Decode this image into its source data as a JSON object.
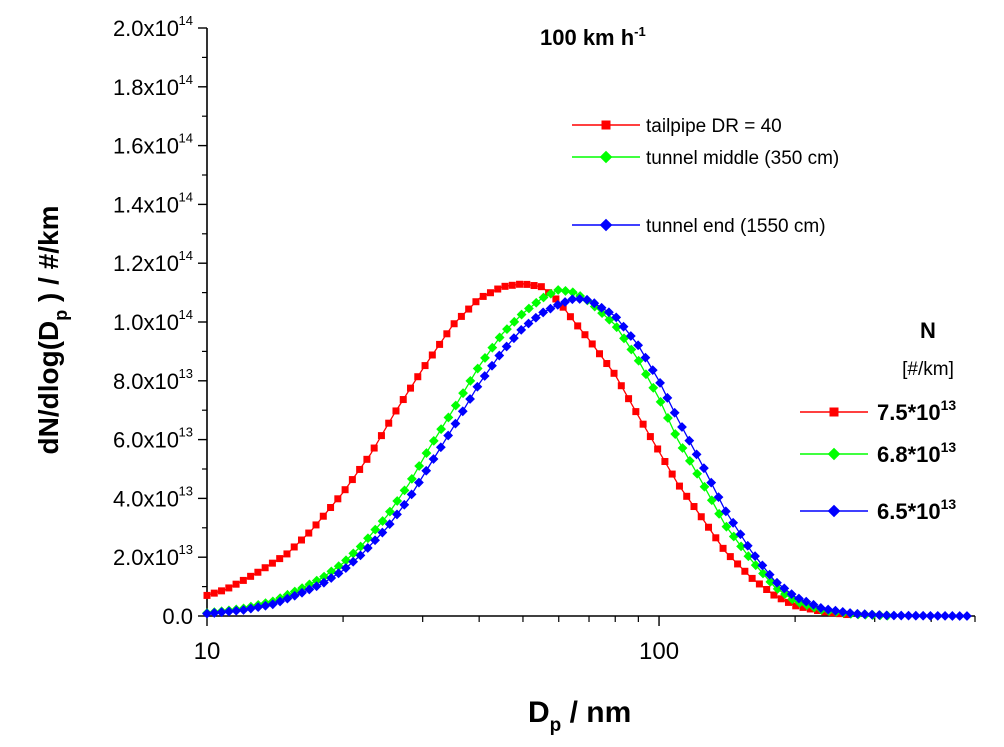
{
  "chart_data": {
    "type": "line",
    "title": "100 km h",
    "title_superscript": "-1",
    "xlabel": "D",
    "xlabel_subscript": "p",
    "xlabel_unit": " / nm",
    "ylabel_parts": {
      "pre": "dN/dlog(D",
      "sub": "p",
      "post": " ) / #/km"
    },
    "x_scale": "log",
    "xlim": [
      10,
      500
    ],
    "ylim": [
      0,
      200000000000000.0
    ],
    "x_ticks": [
      {
        "value": 10,
        "label": "10"
      },
      {
        "value": 100,
        "label": "100"
      }
    ],
    "y_ticks": [
      {
        "value": 0,
        "mant": "0.0",
        "exp": ""
      },
      {
        "value": 20000000000000.0,
        "mant": "2.0x10",
        "exp": "13"
      },
      {
        "value": 40000000000000.0,
        "mant": "4.0x10",
        "exp": "13"
      },
      {
        "value": 60000000000000.0,
        "mant": "6.0x10",
        "exp": "13"
      },
      {
        "value": 80000000000000.0,
        "mant": "8.0x10",
        "exp": "13"
      },
      {
        "value": 100000000000000.0,
        "mant": "1.0x10",
        "exp": "14"
      },
      {
        "value": 120000000000000.0,
        "mant": "1.2x10",
        "exp": "14"
      },
      {
        "value": 140000000000000.0,
        "mant": "1.4x10",
        "exp": "14"
      },
      {
        "value": 160000000000000.0,
        "mant": "1.6x10",
        "exp": "14"
      },
      {
        "value": 180000000000000.0,
        "mant": "1.8x10",
        "exp": "14"
      },
      {
        "value": 200000000000000.0,
        "mant": "2.0x10",
        "exp": "14"
      }
    ],
    "grid": false,
    "series": [
      {
        "name": "tailpipe DR = 40",
        "color": "#ff0000",
        "marker": "square",
        "total_mant": "7.5*10",
        "total_exp": "13",
        "points": [
          [
            10,
            7000000000000.0
          ],
          [
            11,
            9000000000000.0
          ],
          [
            12,
            12000000000000.0
          ],
          [
            13,
            15000000000000.0
          ],
          [
            15,
            21000000000000.0
          ],
          [
            17,
            29000000000000.0
          ],
          [
            20,
            42000000000000.0
          ],
          [
            23,
            55000000000000.0
          ],
          [
            26,
            69000000000000.0
          ],
          [
            30,
            84000000000000.0
          ],
          [
            35,
            99000000000000.0
          ],
          [
            40,
            108000000000000.0
          ],
          [
            45,
            112000000000000.0
          ],
          [
            50,
            113000000000000.0
          ],
          [
            55,
            112000000000000.0
          ],
          [
            60,
            107000000000000.0
          ],
          [
            65,
            100000000000000.0
          ],
          [
            70,
            94000000000000.0
          ],
          [
            80,
            82000000000000.0
          ],
          [
            90,
            68000000000000.0
          ],
          [
            100,
            56000000000000.0
          ],
          [
            110,
            45000000000000.0
          ],
          [
            125,
            33000000000000.0
          ],
          [
            140,
            22000000000000.0
          ],
          [
            160,
            13000000000000.0
          ],
          [
            180,
            7000000000000.0
          ],
          [
            200,
            3500000000000.0
          ],
          [
            230,
            1500000000000.0
          ],
          [
            260,
            500000000000.0
          ]
        ]
      },
      {
        "name": "tunnel middle (350 cm)",
        "color": "#00ff00",
        "marker": "diamond",
        "total_mant": "6.8*10",
        "total_exp": "13",
        "points": [
          [
            10,
            1000000000000.0
          ],
          [
            12,
            2500000000000.0
          ],
          [
            14,
            5000000000000.0
          ],
          [
            16,
            9000000000000.0
          ],
          [
            18,
            13000000000000.0
          ],
          [
            20,
            18000000000000.0
          ],
          [
            22,
            24000000000000.0
          ],
          [
            25,
            34000000000000.0
          ],
          [
            28,
            45000000000000.0
          ],
          [
            31,
            57000000000000.0
          ],
          [
            35,
            70000000000000.0
          ],
          [
            40,
            85000000000000.0
          ],
          [
            45,
            96000000000000.0
          ],
          [
            50,
            103000000000000.0
          ],
          [
            55,
            108000000000000.0
          ],
          [
            60,
            111000000000000.0
          ],
          [
            65,
            110000000000000.0
          ],
          [
            70,
            107000000000000.0
          ],
          [
            80,
            99000000000000.0
          ],
          [
            90,
            87000000000000.0
          ],
          [
            100,
            74000000000000.0
          ],
          [
            110,
            60000000000000.0
          ],
          [
            125,
            45000000000000.0
          ],
          [
            140,
            31000000000000.0
          ],
          [
            160,
            19000000000000.0
          ],
          [
            180,
            10000000000000.0
          ],
          [
            200,
            5000000000000.0
          ],
          [
            230,
            2000000000000.0
          ],
          [
            270,
            600000000000.0
          ],
          [
            320,
            100000000000.0
          ]
        ]
      },
      {
        "name": "tunnel end (1550 cm)",
        "color": "#0000ff",
        "marker": "diamond",
        "total_mant": "6.5*10",
        "total_exp": "13",
        "points": [
          [
            10,
            800000000000.0
          ],
          [
            12,
            2000000000000.0
          ],
          [
            14,
            4000000000000.0
          ],
          [
            16,
            7500000000000.0
          ],
          [
            18,
            11000000000000.0
          ],
          [
            20,
            15500000000000.0
          ],
          [
            22,
            21000000000000.0
          ],
          [
            25,
            30000000000000.0
          ],
          [
            28,
            40000000000000.0
          ],
          [
            31,
            51000000000000.0
          ],
          [
            35,
            64000000000000.0
          ],
          [
            40,
            79000000000000.0
          ],
          [
            45,
            90000000000000.0
          ],
          [
            50,
            98000000000000.0
          ],
          [
            55,
            103000000000000.0
          ],
          [
            60,
            106000000000000.0
          ],
          [
            65,
            108000000000000.0
          ],
          [
            70,
            107500000000000.0
          ],
          [
            80,
            102000000000000.0
          ],
          [
            90,
            92000000000000.0
          ],
          [
            100,
            80000000000000.0
          ],
          [
            110,
            67000000000000.0
          ],
          [
            125,
            51000000000000.0
          ],
          [
            140,
            36000000000000.0
          ],
          [
            160,
            22000000000000.0
          ],
          [
            180,
            12000000000000.0
          ],
          [
            200,
            6500000000000.0
          ],
          [
            230,
            2500000000000.0
          ],
          [
            270,
            800000000000.0
          ],
          [
            320,
            200000000000.0
          ],
          [
            400,
            50000000000.0
          ],
          [
            480,
            0.0
          ]
        ]
      }
    ],
    "legend_top_placement": "top-right inside plot",
    "legend_totals_header": "N",
    "legend_totals_unit": "[#/km]",
    "legend_totals_placement": "right, outside plot"
  }
}
